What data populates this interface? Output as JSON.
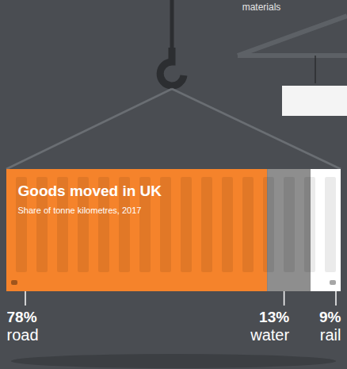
{
  "chart_data": {
    "type": "bar",
    "orientation": "horizontal",
    "stacked": true,
    "title": "Goods moved in UK",
    "subtitle": "Share of tonne kilometres, 2017",
    "annotation": "materials",
    "categories": [
      "road",
      "water",
      "rail"
    ],
    "values": [
      78,
      13,
      9
    ],
    "value_labels": [
      "78%",
      "13%",
      "9%"
    ],
    "colors": [
      "#f5832b",
      "#8e8e8e",
      "#ffffff"
    ],
    "xlim": [
      0,
      100
    ],
    "tick_labels": false,
    "data_labels": true
  }
}
